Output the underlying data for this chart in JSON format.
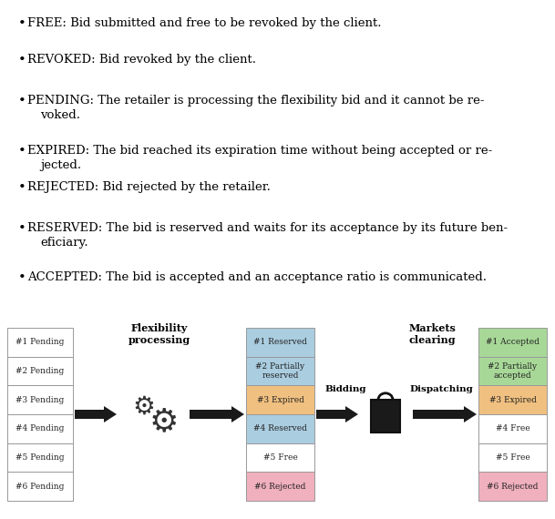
{
  "bullet_texts": [
    [
      "FREE: Bid submitted and free to be revoked by the client."
    ],
    [
      "REVOKED: Bid revoked by the client."
    ],
    [
      "PENDING: The retailer is processing the flexibility bid and it cannot be re-",
      "voked."
    ],
    [
      "EXPIRED: The bid reached its expiration time without being accepted or re-",
      "jected."
    ],
    [
      "REJECTED: Bid rejected by the retailer."
    ],
    [
      "RESERVED: The bid is reserved and waits for its acceptance by its future ben-",
      "eficiary."
    ],
    [
      "ACCEPTED: The bid is accepted and an acceptance ratio is communicated."
    ]
  ],
  "col1_labels": [
    "#1 Pending",
    "#2 Pending",
    "#3 Pending",
    "#4 Pending",
    "#5 Pending",
    "#6 Pending"
  ],
  "col1_colors": [
    "#ffffff",
    "#ffffff",
    "#ffffff",
    "#ffffff",
    "#ffffff",
    "#ffffff"
  ],
  "col2_labels": [
    "#1 Reserved",
    "#2 Partially\nreserved",
    "#3 Expired",
    "#4 Reserved",
    "#5 Free",
    "#6 Rejected"
  ],
  "col2_colors": [
    "#aacde0",
    "#aacde0",
    "#f0c080",
    "#aacde0",
    "#ffffff",
    "#f0b0be"
  ],
  "col3_labels": [
    "#1 Accepted",
    "#2 Partially\naccepted",
    "#3 Expired",
    "#4 Free",
    "#5 Free",
    "#6 Rejected"
  ],
  "col3_colors": [
    "#a8d898",
    "#a8d898",
    "#f0c080",
    "#ffffff",
    "#ffffff",
    "#f0b0be"
  ],
  "flex_label": "Flexibility\nprocessing",
  "markets_label": "Markets\nclearing",
  "bidding_label": "Bidding",
  "dispatching_label": "Dispatching",
  "background_color": "#ffffff",
  "text_color": "#000000",
  "edge_color": "#999999"
}
